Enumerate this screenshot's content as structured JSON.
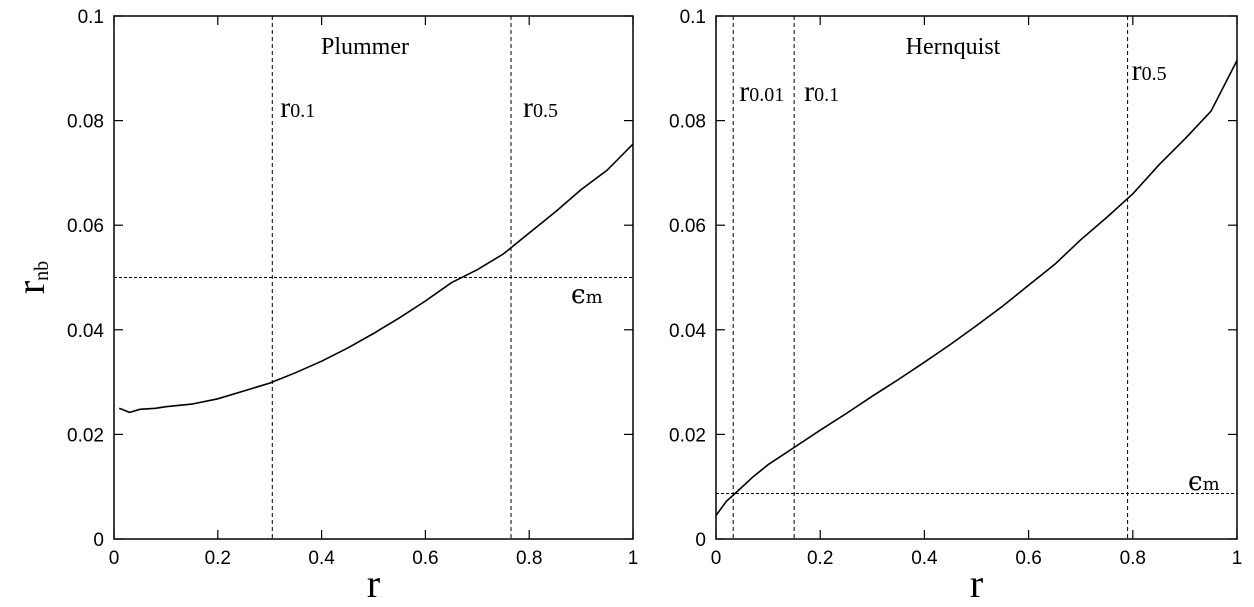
{
  "chart_data": [
    {
      "type": "line",
      "title": "Plummer",
      "xlabel": "r",
      "ylabel": {
        "main": "r",
        "sub": "nb"
      },
      "xlim": [
        0,
        1
      ],
      "ylim": [
        0,
        0.1
      ],
      "xticks": [
        "0",
        "0.2",
        "0.4",
        "0.6",
        "0.8",
        "1"
      ],
      "yticks": [
        "0",
        "0.02",
        "0.04",
        "0.06",
        "0.08",
        "0.1"
      ],
      "grid": false,
      "series": [
        {
          "x": [
            0.01,
            0.03,
            0.05,
            0.08,
            0.1,
            0.15,
            0.2,
            0.25,
            0.3,
            0.35,
            0.4,
            0.45,
            0.5,
            0.55,
            0.6,
            0.65,
            0.7,
            0.75,
            0.8,
            0.85,
            0.9,
            0.95,
            1.0
          ],
          "y": [
            0.025,
            0.0242,
            0.0248,
            0.025,
            0.0253,
            0.0258,
            0.0268,
            0.0283,
            0.0298,
            0.0318,
            0.034,
            0.0365,
            0.0393,
            0.0423,
            0.0455,
            0.049,
            0.0515,
            0.0545,
            0.0585,
            0.0625,
            0.0668,
            0.0705,
            0.0755
          ]
        }
      ],
      "reference_lines": [
        {
          "orientation": "horizontal",
          "value": 0.05,
          "label": "ϵ",
          "label_sub": "m"
        },
        {
          "orientation": "vertical",
          "value": 0.305,
          "label": "r",
          "label_sub": "0.1"
        },
        {
          "orientation": "vertical",
          "value": 0.765,
          "label": "r",
          "label_sub": "0.5"
        }
      ]
    },
    {
      "type": "line",
      "title": "Hernquist",
      "xlabel": "r",
      "xlim": [
        0,
        1
      ],
      "ylim": [
        0,
        0.1
      ],
      "xticks": [
        "0",
        "0.2",
        "0.4",
        "0.6",
        "0.8",
        "1"
      ],
      "yticks": [
        "0",
        "0.02",
        "0.04",
        "0.06",
        "0.08",
        "0.1"
      ],
      "grid": false,
      "series": [
        {
          "x": [
            0.0,
            0.02,
            0.04,
            0.07,
            0.1,
            0.15,
            0.2,
            0.25,
            0.3,
            0.35,
            0.4,
            0.45,
            0.5,
            0.55,
            0.6,
            0.65,
            0.7,
            0.75,
            0.8,
            0.85,
            0.9,
            0.95,
            1.0
          ],
          "y": [
            0.0045,
            0.0072,
            0.009,
            0.0118,
            0.0142,
            0.0175,
            0.0208,
            0.024,
            0.0273,
            0.0305,
            0.0338,
            0.0372,
            0.0408,
            0.0445,
            0.0485,
            0.0525,
            0.0572,
            0.0615,
            0.066,
            0.0715,
            0.0765,
            0.0818,
            0.0915
          ]
        }
      ],
      "reference_lines": [
        {
          "orientation": "horizontal",
          "value": 0.0087,
          "label": "ϵ",
          "label_sub": "m"
        },
        {
          "orientation": "vertical",
          "value": 0.033,
          "label": "r",
          "label_sub": "0.01"
        },
        {
          "orientation": "vertical",
          "value": 0.15,
          "label": "r",
          "label_sub": "0.1"
        },
        {
          "orientation": "vertical",
          "value": 0.79,
          "label": "r",
          "label_sub": "0.5"
        }
      ]
    }
  ]
}
